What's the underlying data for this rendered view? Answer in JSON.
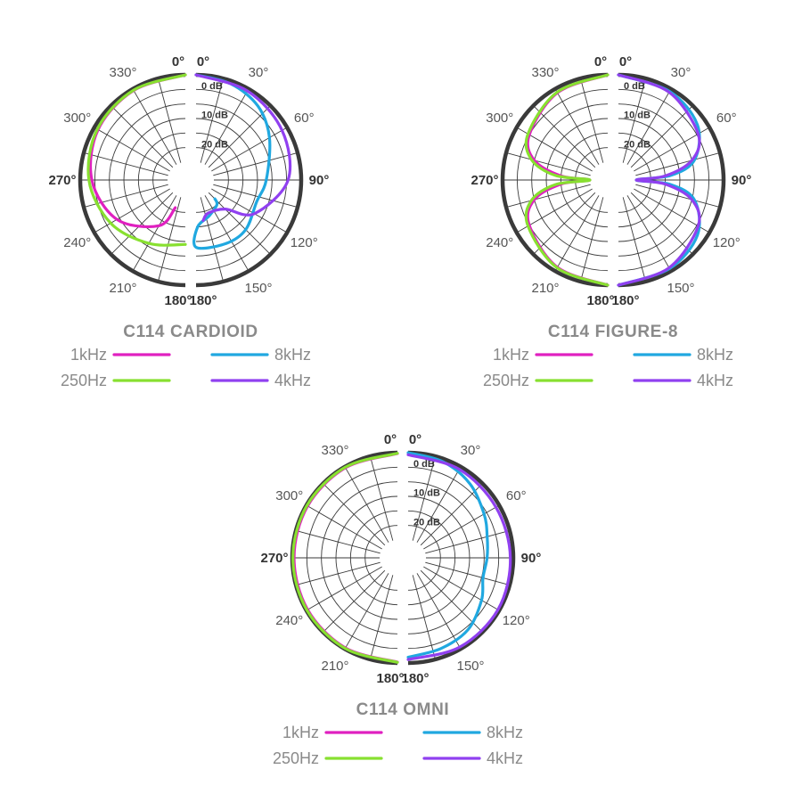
{
  "colors": {
    "1kHz": "#e020c0",
    "250Hz": "#88e030",
    "8kHz": "#20a8e0",
    "4kHz": "#9040f0",
    "grid": "#3a3a3a",
    "text": "#8a8a8a"
  },
  "chart_data": [
    {
      "type": "polar",
      "title": "C114 CARDIOID",
      "angle_labels": [
        "0°",
        "30°",
        "60°",
        "90°",
        "120°",
        "150°",
        "180°",
        "180°",
        "210°",
        "240°",
        "270°",
        "300°",
        "330°",
        "0°"
      ],
      "db_labels": [
        "0 dB",
        "10 dB",
        "20 dB"
      ],
      "r_unit": "dB",
      "r_range": [
        -30,
        0
      ],
      "legend": [
        {
          "name": "1kHz",
          "color": "#e020c0"
        },
        {
          "name": "8kHz",
          "color": "#20a8e0"
        },
        {
          "name": "250Hz",
          "color": "#88e030"
        },
        {
          "name": "4kHz",
          "color": "#9040f0"
        }
      ],
      "series": [
        {
          "name": "1kHz",
          "side": "left",
          "points": [
            [
              0,
              0
            ],
            [
              30,
              -0.6
            ],
            [
              60,
              -1.5
            ],
            [
              90,
              -4
            ],
            [
              120,
              -9
            ],
            [
              150,
              -18
            ],
            [
              160,
              -26
            ]
          ]
        },
        {
          "name": "250Hz",
          "side": "left",
          "points": [
            [
              0,
              0
            ],
            [
              30,
              -0.5
            ],
            [
              60,
              -1.2
            ],
            [
              90,
              -3
            ],
            [
              120,
              -6.5
            ],
            [
              150,
              -11
            ],
            [
              180,
              -14
            ]
          ]
        },
        {
          "name": "8kHz",
          "side": "right",
          "points": [
            [
              0,
              0
            ],
            [
              20,
              -1
            ],
            [
              40,
              -3
            ],
            [
              60,
              -7
            ],
            [
              90,
              -12
            ],
            [
              110,
              -14
            ],
            [
              135,
              -12
            ],
            [
              155,
              -12
            ],
            [
              180,
              -13
            ],
            [
              178,
              -20
            ],
            [
              160,
              -23
            ],
            [
              140,
              -25
            ],
            [
              135,
              -27
            ]
          ]
        },
        {
          "name": "4kHz",
          "side": "right",
          "points": [
            [
              0,
              0
            ],
            [
              30,
              -0.8
            ],
            [
              60,
              -2
            ],
            [
              90,
              -4.5
            ],
            [
              120,
              -13
            ],
            [
              135,
              -22
            ],
            [
              160,
              -24
            ],
            [
              170,
              -22
            ]
          ]
        }
      ]
    },
    {
      "type": "polar",
      "title": "C114 FIGURE-8",
      "angle_labels": [
        "0°",
        "30°",
        "60°",
        "90°",
        "120°",
        "150°",
        "180°",
        "180°",
        "210°",
        "240°",
        "270°",
        "300°",
        "330°",
        "0°"
      ],
      "db_labels": [
        "0 dB",
        "10 dB",
        "20 dB"
      ],
      "r_unit": "dB",
      "r_range": [
        -30,
        0
      ],
      "legend": [
        {
          "name": "1kHz",
          "color": "#e020c0"
        },
        {
          "name": "8kHz",
          "color": "#20a8e0"
        },
        {
          "name": "250Hz",
          "color": "#88e030"
        },
        {
          "name": "4kHz",
          "color": "#9040f0"
        }
      ],
      "series": [
        {
          "name": "1kHz",
          "side": "left",
          "points": [
            [
              0,
              0
            ],
            [
              30,
              -1.5
            ],
            [
              60,
              -5
            ],
            [
              75,
              -10
            ],
            [
              85,
              -20
            ],
            [
              90,
              -30
            ],
            [
              95,
              -20
            ],
            [
              105,
              -10
            ],
            [
              120,
              -5
            ],
            [
              150,
              -1.5
            ],
            [
              180,
              0
            ]
          ]
        },
        {
          "name": "250Hz",
          "side": "left",
          "points": [
            [
              0,
              0
            ],
            [
              30,
              -1.3
            ],
            [
              60,
              -4.5
            ],
            [
              75,
              -9
            ],
            [
              85,
              -18
            ],
            [
              90,
              -30
            ],
            [
              95,
              -18
            ],
            [
              105,
              -9
            ],
            [
              120,
              -4.5
            ],
            [
              150,
              -1.3
            ],
            [
              180,
              0
            ]
          ]
        },
        {
          "name": "8kHz",
          "side": "right",
          "points": [
            [
              0,
              0
            ],
            [
              30,
              -1
            ],
            [
              55,
              -3
            ],
            [
              75,
              -9
            ],
            [
              85,
              -18
            ],
            [
              90,
              -30
            ],
            [
              95,
              -18
            ],
            [
              105,
              -9
            ],
            [
              125,
              -3
            ],
            [
              150,
              -1
            ],
            [
              180,
              0
            ]
          ]
        },
        {
          "name": "4kHz",
          "side": "right",
          "points": [
            [
              0,
              0
            ],
            [
              30,
              -1.3
            ],
            [
              60,
              -4.5
            ],
            [
              75,
              -10
            ],
            [
              85,
              -20
            ],
            [
              90,
              -30
            ],
            [
              95,
              -20
            ],
            [
              105,
              -10
            ],
            [
              120,
              -4.5
            ],
            [
              150,
              -1.3
            ],
            [
              180,
              0
            ]
          ]
        }
      ]
    },
    {
      "type": "polar",
      "title": "C114 OMNI",
      "angle_labels": [
        "0°",
        "30°",
        "60°",
        "90°",
        "120°",
        "150°",
        "180°",
        "180°",
        "210°",
        "240°",
        "270°",
        "300°",
        "330°",
        "0°"
      ],
      "db_labels": [
        "0 dB",
        "10 dB",
        "20 dB"
      ],
      "r_unit": "dB",
      "r_range": [
        -30,
        0
      ],
      "legend": [
        {
          "name": "1kHz",
          "color": "#e020c0"
        },
        {
          "name": "8kHz",
          "color": "#20a8e0"
        },
        {
          "name": "250Hz",
          "color": "#88e030"
        },
        {
          "name": "4kHz",
          "color": "#9040f0"
        }
      ],
      "series": [
        {
          "name": "1kHz",
          "side": "left",
          "points": [
            [
              0,
              -0.3
            ],
            [
              30,
              -0.4
            ],
            [
              60,
              -0.5
            ],
            [
              90,
              -0.6
            ],
            [
              120,
              -0.5
            ],
            [
              150,
              -0.4
            ],
            [
              180,
              -0.3
            ]
          ]
        },
        {
          "name": "250Hz",
          "side": "left",
          "points": [
            [
              0,
              -0.2
            ],
            [
              30,
              -0.2
            ],
            [
              60,
              -0.2
            ],
            [
              90,
              -0.2
            ],
            [
              120,
              -0.2
            ],
            [
              150,
              -0.2
            ],
            [
              180,
              -0.2
            ]
          ]
        },
        {
          "name": "8kHz",
          "side": "right",
          "points": [
            [
              0,
              0
            ],
            [
              20,
              -1
            ],
            [
              40,
              -3
            ],
            [
              60,
              -6
            ],
            [
              75,
              -8
            ],
            [
              90,
              -9
            ],
            [
              105,
              -9.5
            ],
            [
              120,
              -7
            ],
            [
              140,
              -4
            ],
            [
              160,
              -3
            ],
            [
              180,
              -2
            ]
          ]
        },
        {
          "name": "4kHz",
          "side": "right",
          "points": [
            [
              0,
              -0.7
            ],
            [
              30,
              -1
            ],
            [
              60,
              -1.3
            ],
            [
              90,
              -1
            ],
            [
              120,
              -0.5
            ],
            [
              150,
              -0.7
            ],
            [
              180,
              -1.2
            ]
          ]
        }
      ]
    }
  ]
}
